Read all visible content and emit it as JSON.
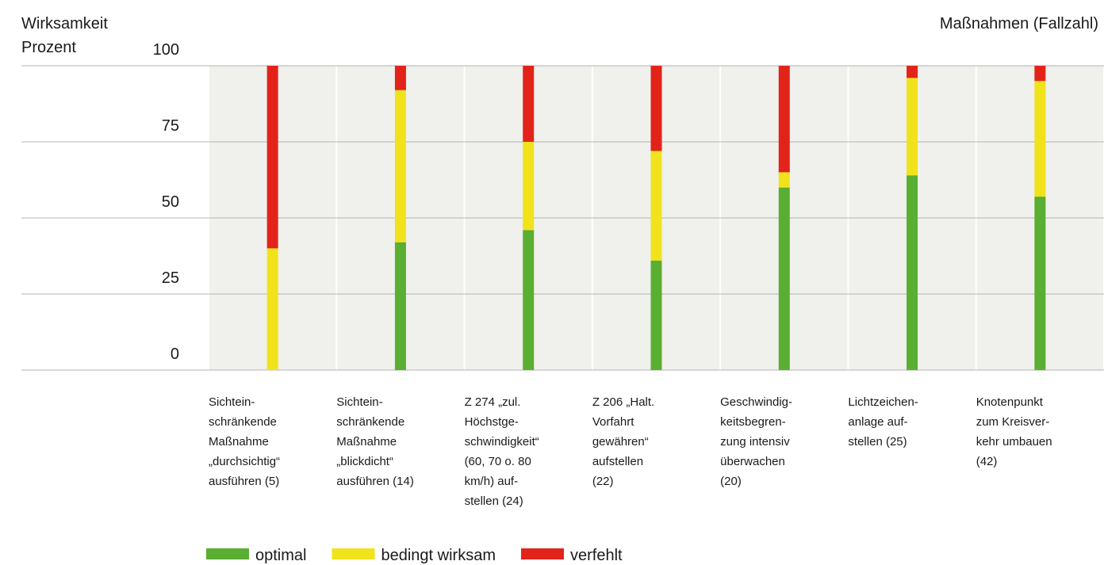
{
  "chart_data": {
    "type": "stacked_bar",
    "title": "Wirksamkeit",
    "y_label": "Prozent",
    "x_label": "Maßnahmen (Fallzahl)",
    "categories": [
      "Sichtein-\nschränkende\nMaßnahme\n„durchsichtig“\nausführen (5)",
      "Sichtein-\nschränkende\nMaßnahme\n„blickdicht“\nausführen (14)",
      "Z 274 „zul.\nHöchstge-\nschwindigkeit“\n(60, 70 o. 80\nkm/h) auf-\nstellen (24)",
      "Z 206 „Halt.\nVorfahrt\ngewähren“\naufstellen\n(22)",
      "Geschwindig-\nkeitsbegren-\nzung intensiv\nüberwachen\n(20)",
      "Lichtzeichen-\nanlage auf-\nstellen (25)",
      "Knotenpunkt\nzum Kreisver-\nkehr umbauen\n(42)"
    ],
    "series": [
      {
        "name": "optimal",
        "color": "#5aae32",
        "values": [
          0,
          42,
          46,
          36,
          60,
          64,
          57
        ]
      },
      {
        "name": "bedingt wirksam",
        "color": "#f0e31c",
        "values": [
          40,
          50,
          29,
          36,
          5,
          32,
          38
        ]
      },
      {
        "name": "verfehlt",
        "color": "#e2231a",
        "values": [
          60,
          8,
          25,
          28,
          35,
          4,
          5
        ]
      }
    ],
    "ylim": [
      0,
      100
    ],
    "yticks": [
      0,
      25,
      50,
      75,
      100
    ],
    "grid": true
  }
}
